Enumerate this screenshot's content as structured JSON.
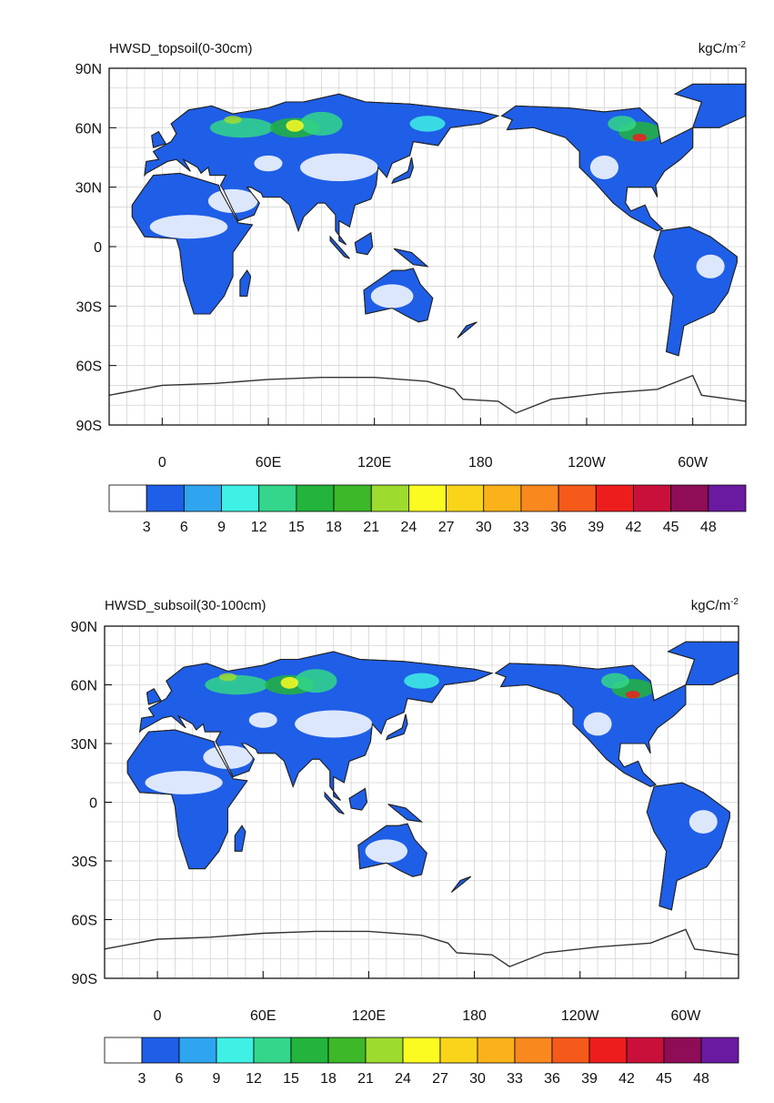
{
  "panels": [
    {
      "title": "HWSD_topsoil(0-30cm)",
      "unit": {
        "base": "kgC/m",
        "exponent": "-2"
      }
    },
    {
      "title": "HWSD_subsoil(30-100cm)",
      "unit": {
        "base": "kgC/m",
        "exponent": "-2"
      }
    }
  ],
  "lat_labels": [
    "90N",
    "60N",
    "30N",
    "0",
    "30S",
    "60S",
    "90S"
  ],
  "lon_labels": [
    "0",
    "60E",
    "120E",
    "180",
    "120W",
    "60W"
  ],
  "colorbar": {
    "colors": [
      "#ffffff",
      "#1f5ee6",
      "#2fa4ef",
      "#3ff0e4",
      "#33d68a",
      "#22b43c",
      "#3db829",
      "#9edb2f",
      "#fbfb21",
      "#fad41a",
      "#fbb21a",
      "#f9881e",
      "#f55a1b",
      "#ee1d1d",
      "#c8103a",
      "#8e0d56",
      "#6a1aa0"
    ],
    "labels": [
      3,
      6,
      9,
      12,
      15,
      18,
      21,
      24,
      27,
      30,
      33,
      36,
      39,
      42,
      45,
      48
    ]
  }
}
